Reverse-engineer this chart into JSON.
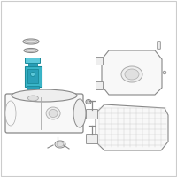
{
  "bg_color": "#ffffff",
  "border_color": "#cccccc",
  "teal": "#3ab5c8",
  "teal_dark": "#1a8a9a",
  "teal_mid": "#2aa0b8",
  "teal_light": "#5cc8da",
  "line_color": "#aaaaaa",
  "line_dark": "#888888",
  "fill_white": "#f8f8f8",
  "fill_light": "#eeeeee",
  "fill_mid": "#e0e0e0",
  "fill_dark": "#cccccc"
}
